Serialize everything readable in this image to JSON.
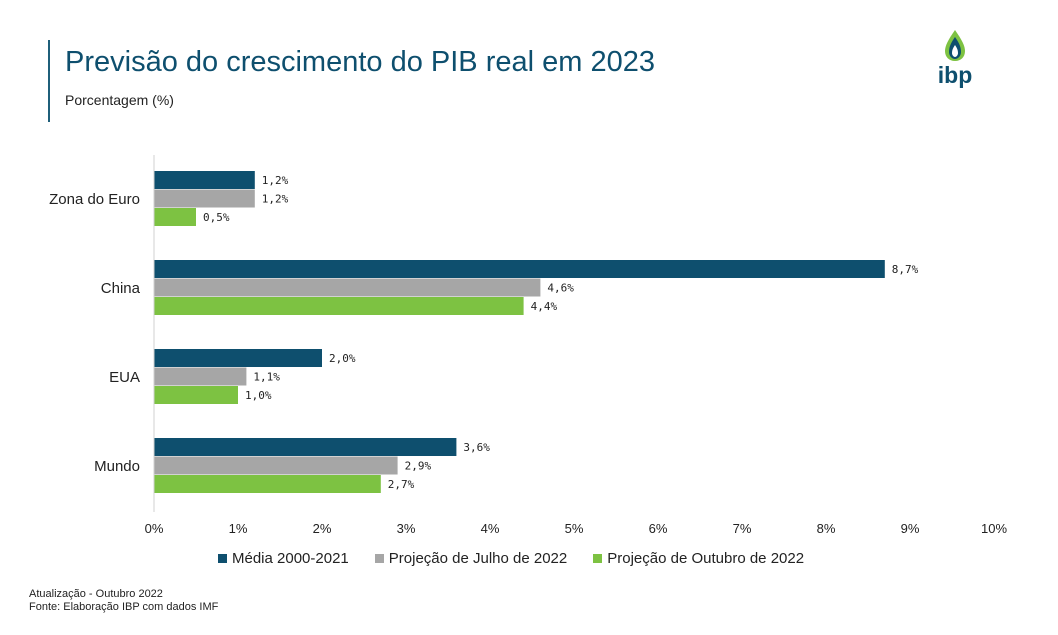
{
  "header": {
    "title": "Previsão do crescimento do PIB real em 2023",
    "subtitle": "Porcentagem (%)"
  },
  "logo": {
    "text": "ibp",
    "icon": "drop-flame-icon"
  },
  "colors": {
    "media": "#0e4f6e",
    "julho": "#a6a6a6",
    "outubro": "#7dc242",
    "title": "#0e4f6e"
  },
  "chart_data": {
    "type": "bar",
    "orientation": "horizontal",
    "title": "Previsão do crescimento do PIB real em 2023",
    "ylabel": "Porcentagem (%)",
    "categories": [
      "Zona do Euro",
      "China",
      "EUA",
      "Mundo"
    ],
    "series": [
      {
        "name": "Média 2000-2021",
        "values": [
          1.2,
          8.7,
          2.0,
          3.6
        ],
        "labels": [
          "1,2%",
          "8,7%",
          "2,0%",
          "3,6%"
        ]
      },
      {
        "name": "Projeção de Julho de 2022",
        "values": [
          1.2,
          4.6,
          1.1,
          2.9
        ],
        "labels": [
          "1,2%",
          "4,6%",
          "1,1%",
          "2,9%"
        ]
      },
      {
        "name": "Projeção de Outubro de 2022",
        "values": [
          0.5,
          4.4,
          1.0,
          2.7
        ],
        "labels": [
          "0,5%",
          "4,4%",
          "1,0%",
          "2,7%"
        ]
      }
    ],
    "xlim": [
      0,
      10
    ],
    "ticks": [
      "0%",
      "1%",
      "2%",
      "3%",
      "4%",
      "5%",
      "6%",
      "7%",
      "8%",
      "9%",
      "10%"
    ],
    "grid": false,
    "legend": "bottom"
  },
  "footer": {
    "update": "Atualização - Outubro 2022",
    "source": "Fonte: Elaboração IBP com dados IMF"
  }
}
